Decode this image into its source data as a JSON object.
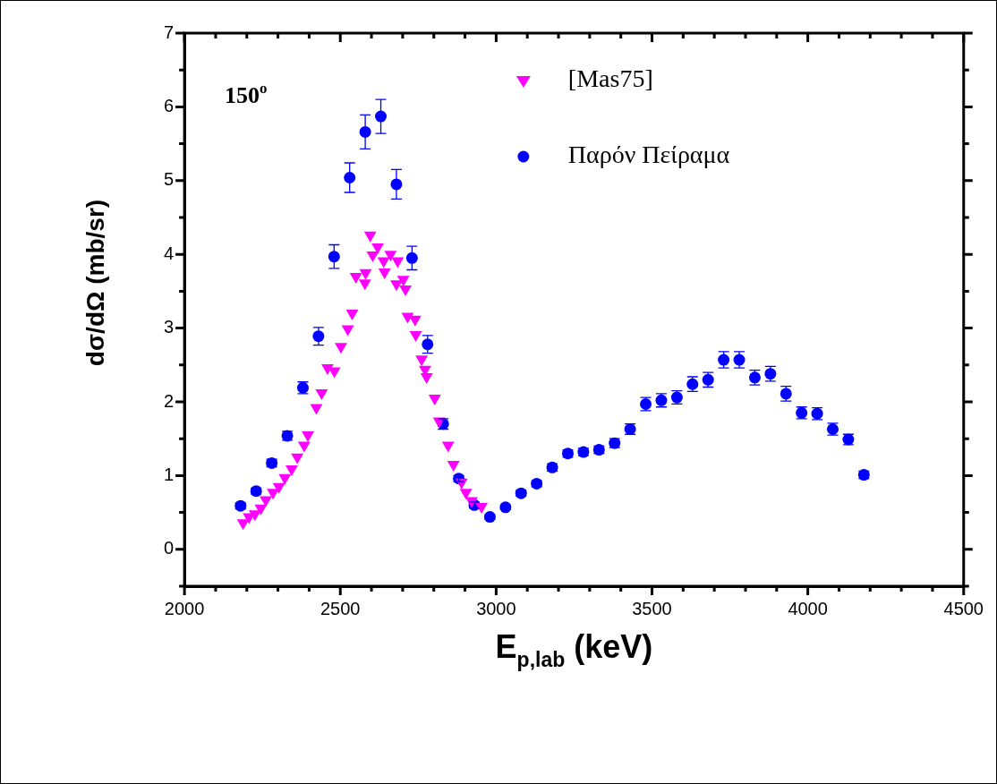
{
  "chart_data": {
    "type": "scatter",
    "xlabel": "E$_{p,lab}$ (keV)",
    "ylabel": "dσ/dΩ (mb/sr)",
    "annotations": [
      "150$^{o}$"
    ],
    "xlim": [
      2000,
      4500
    ],
    "xticks": [
      2000,
      {
        "value": 2100,
        "label": null
      },
      {
        "value": 2200,
        "label": null
      },
      {
        "value": 2300,
        "label": null
      },
      {
        "value": 2400,
        "label": null
      },
      2500,
      {
        "value": 2600,
        "label": null
      },
      {
        "value": 2700,
        "label": null
      },
      {
        "value": 2800,
        "label": null
      },
      {
        "value": 2900,
        "label": null
      },
      3000,
      {
        "value": 3100,
        "label": null
      },
      {
        "value": 3200,
        "label": null
      },
      {
        "value": 3300,
        "label": null
      },
      {
        "value": 3400,
        "label": null
      },
      3500,
      {
        "value": 3600,
        "label": null
      },
      {
        "value": 3700,
        "label": null
      },
      {
        "value": 3800,
        "label": null
      },
      {
        "value": 3900,
        "label": null
      },
      4000,
      {
        "value": 4100,
        "label": null
      },
      {
        "value": 4200,
        "label": null
      },
      {
        "value": 4300,
        "label": null
      },
      {
        "value": 4400,
        "label": null
      },
      4500
    ],
    "ylim": [
      -0.5,
      7
    ],
    "yticks": [
      {
        "value": -0.5,
        "label": null
      },
      0,
      {
        "value": 0.5,
        "label": null
      },
      1,
      {
        "value": 1.5,
        "label": null
      },
      2,
      {
        "value": 2.5,
        "label": null
      },
      3,
      {
        "value": 3.5,
        "label": null
      },
      4,
      {
        "value": 4.5,
        "label": null
      },
      5,
      {
        "value": 5.5,
        "label": null
      },
      6,
      {
        "value": 6.5,
        "label": null
      },
      7
    ],
    "grid": false,
    "legend": "top right",
    "series": [
      {
        "name": "[Mas75]",
        "color": "#ff00ff",
        "marker": "triangle",
        "x": [
          2188,
          2207,
          2226,
          2245,
          2261,
          2284,
          2303,
          2322,
          2344,
          2362,
          2384,
          2396,
          2423,
          2440,
          2459,
          2481,
          2502,
          2524,
          2538,
          2550,
          2579,
          2581,
          2596,
          2604,
          2620,
          2639,
          2642,
          2661,
          2680,
          2684,
          2702,
          2709,
          2716,
          2740,
          2742,
          2761,
          2772,
          2777,
          2803,
          2817,
          2846,
          2863,
          2889,
          2903,
          2921,
          2953
        ],
        "values": [
          0.36,
          0.44,
          0.48,
          0.56,
          0.67,
          0.77,
          0.85,
          0.97,
          1.09,
          1.25,
          1.41,
          1.55,
          1.92,
          2.12,
          2.46,
          2.42,
          2.75,
          2.99,
          3.2,
          3.7,
          3.61,
          3.75,
          4.26,
          3.99,
          4.1,
          3.91,
          3.76,
          4.0,
          3.6,
          3.91,
          3.66,
          3.53,
          3.16,
          3.12,
          2.91,
          2.58,
          2.44,
          2.34,
          2.05,
          1.74,
          1.41,
          1.15,
          0.91,
          0.77,
          0.66,
          0.58
        ]
      },
      {
        "name": "Παρόν Πείραμα",
        "color": "#0000ff",
        "marker": "circle",
        "x": [
          2180,
          2230,
          2280,
          2330,
          2380,
          2430,
          2480,
          2530,
          2580,
          2630,
          2680,
          2730,
          2780,
          2830,
          2880,
          2930,
          2980,
          3030,
          3080,
          3130,
          3180,
          3230,
          3280,
          3330,
          3380,
          3430,
          3480,
          3530,
          3580,
          3630,
          3680,
          3730,
          3780,
          3830,
          3880,
          3930,
          3980,
          4030,
          4080,
          4130,
          4180
        ],
        "values": [
          0.59,
          0.79,
          1.17,
          1.54,
          2.19,
          2.89,
          3.97,
          5.04,
          5.66,
          5.87,
          4.95,
          3.95,
          2.78,
          1.7,
          0.96,
          0.6,
          0.44,
          0.57,
          0.76,
          0.89,
          1.11,
          1.3,
          1.32,
          1.35,
          1.44,
          1.63,
          1.97,
          2.02,
          2.06,
          2.24,
          2.3,
          2.57,
          2.57,
          2.33,
          2.38,
          2.11,
          1.85,
          1.84,
          1.63,
          1.49,
          1.01
        ],
        "errors": [
          0.04,
          0.04,
          0.05,
          0.06,
          0.08,
          0.12,
          0.16,
          0.2,
          0.23,
          0.23,
          0.2,
          0.16,
          0.12,
          0.07,
          0.04,
          0.04,
          0.03,
          0.03,
          0.04,
          0.04,
          0.05,
          0.05,
          0.05,
          0.05,
          0.06,
          0.07,
          0.09,
          0.09,
          0.09,
          0.1,
          0.1,
          0.11,
          0.11,
          0.1,
          0.1,
          0.1,
          0.08,
          0.08,
          0.08,
          0.07,
          0.05
        ]
      }
    ]
  }
}
